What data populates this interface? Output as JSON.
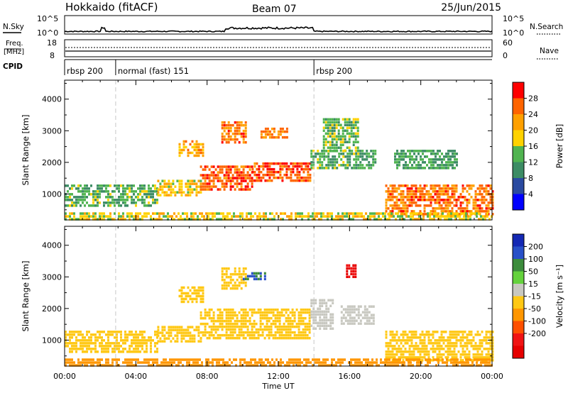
{
  "header": {
    "station": "Hokkaido (fitACF)",
    "beam": "Beam 07",
    "date": "25/Jun/2015"
  },
  "panels": {
    "nsky": {
      "label": "N.Sky",
      "ticks": [
        "10^5",
        "10^0"
      ]
    },
    "freq": {
      "label_line1": "Freq.",
      "label_line2": "[MHz]",
      "left_ticks": [
        "18",
        "8"
      ],
      "right_ticks": [
        "60",
        "0"
      ]
    },
    "cpid": {
      "label": "CPID"
    },
    "nsearch": {
      "label": "N.Search"
    },
    "nave": {
      "label": "Nave"
    }
  },
  "cpid_programs": [
    {
      "label": "rbsp 200",
      "start": "00:00",
      "end": "02:52"
    },
    {
      "label": "normal (fast) 151",
      "start": "02:52",
      "end": "14:00"
    },
    {
      "label": "rbsp 200",
      "start": "14:00",
      "end": "24:00"
    }
  ],
  "colors": {
    "power": [
      "#0000ff",
      "#2a4aa0",
      "#3c8c64",
      "#50b450",
      "#ffd200",
      "#ffa000",
      "#ff6400",
      "#ff0000"
    ],
    "velocity": [
      "#1428b4",
      "#2850c8",
      "#3c8c3c",
      "#64d23c",
      "#c8c8c0",
      "#ffc814",
      "#ff9600",
      "#ff5000",
      "#f01414",
      "#e60000"
    ]
  },
  "chart_data": [
    {
      "type": "heatmap",
      "title": "",
      "ylabel": "Slant Range [km]",
      "xlabel": "",
      "x_ticks": [
        "00:00",
        "04:00",
        "08:00",
        "12:00",
        "16:00",
        "20:00",
        "00:00"
      ],
      "y_ticks": [
        1000,
        2000,
        3000,
        4000
      ],
      "ylim": [
        180,
        4600
      ],
      "xlim_hours": [
        0,
        24
      ],
      "colorbar": {
        "label": "Power [dB]",
        "ticks": [
          4,
          8,
          12,
          16,
          20,
          24,
          28
        ],
        "range": [
          0,
          32
        ]
      },
      "regions": [
        {
          "t": [
            0,
            5.2
          ],
          "r": [
            650,
            1300
          ],
          "value": 13
        },
        {
          "t": [
            5.2,
            7.6
          ],
          "r": [
            1000,
            1450
          ],
          "value": 19
        },
        {
          "t": [
            6.4,
            7.8
          ],
          "r": [
            2200,
            2700
          ],
          "value": 22
        },
        {
          "t": [
            7.6,
            10.5
          ],
          "r": [
            1100,
            1900
          ],
          "value": 27
        },
        {
          "t": [
            8.8,
            10.2
          ],
          "r": [
            2600,
            3300
          ],
          "value": 25
        },
        {
          "t": [
            10.5,
            13.8
          ],
          "r": [
            1400,
            2000
          ],
          "value": 27
        },
        {
          "t": [
            11,
            12.5
          ],
          "r": [
            2800,
            3100
          ],
          "value": 24
        },
        {
          "t": [
            13.8,
            17.5
          ],
          "r": [
            1800,
            2400
          ],
          "value": 13
        },
        {
          "t": [
            14.5,
            16.5
          ],
          "r": [
            2400,
            3400
          ],
          "value": 14
        },
        {
          "t": [
            18,
            24
          ],
          "r": [
            400,
            1300
          ],
          "value": 25
        },
        {
          "t": [
            18.5,
            22
          ],
          "r": [
            1800,
            2400
          ],
          "value": 12
        },
        {
          "t": [
            0,
            24
          ],
          "r": [
            200,
            420
          ],
          "value": 18
        }
      ]
    },
    {
      "type": "heatmap",
      "title": "",
      "ylabel": "Slant Range [km]",
      "xlabel": "Time UT",
      "x_ticks": [
        "00:00",
        "04:00",
        "08:00",
        "12:00",
        "16:00",
        "20:00",
        "00:00"
      ],
      "y_ticks": [
        1000,
        2000,
        3000,
        4000
      ],
      "ylim": [
        180,
        4600
      ],
      "xlim_hours": [
        0,
        24
      ],
      "colorbar": {
        "label": "Velocity [m s⁻¹]",
        "ticks": [
          200,
          100,
          50,
          15,
          -15,
          -50,
          -100,
          -200
        ],
        "range": [
          -250,
          250
        ]
      },
      "regions": [
        {
          "t": [
            0,
            5.2
          ],
          "r": [
            650,
            1300
          ],
          "value": 0
        },
        {
          "t": [
            5.2,
            7.6
          ],
          "r": [
            1000,
            1450
          ],
          "value": 0
        },
        {
          "t": [
            6.4,
            7.8
          ],
          "r": [
            2200,
            2700
          ],
          "value": 0
        },
        {
          "t": [
            7.6,
            13.8
          ],
          "r": [
            1100,
            2000
          ],
          "value": 0
        },
        {
          "t": [
            8.8,
            10.2
          ],
          "r": [
            2600,
            3300
          ],
          "value": 0
        },
        {
          "t": [
            10,
            11.3
          ],
          "r": [
            2900,
            3150
          ],
          "value": 200
        },
        {
          "t": [
            13.8,
            15
          ],
          "r": [
            1400,
            2300
          ],
          "value": 30
        },
        {
          "t": [
            15.5,
            17.3
          ],
          "r": [
            1500,
            2100
          ],
          "value": 40
        },
        {
          "t": [
            15.8,
            16.3
          ],
          "r": [
            3000,
            3400
          ],
          "value": -200
        },
        {
          "t": [
            18,
            24
          ],
          "r": [
            400,
            1300
          ],
          "value": 0
        },
        {
          "t": [
            0,
            24
          ],
          "r": [
            200,
            420
          ],
          "value": -30
        }
      ]
    }
  ]
}
